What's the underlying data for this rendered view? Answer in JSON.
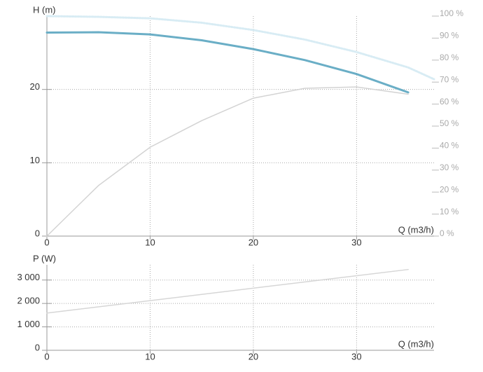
{
  "chart_data": [
    {
      "type": "line",
      "y_label": "H (m)",
      "x_label": "Q (m3/h)",
      "x": [
        0,
        5,
        10,
        15,
        20,
        25,
        30,
        35,
        37.5
      ],
      "xlim": [
        0,
        37.5
      ],
      "xticks": [
        0,
        10,
        20,
        30
      ],
      "ylim": [
        0,
        30
      ],
      "yticks": [
        0,
        10,
        20
      ],
      "y2lim": [
        0,
        100
      ],
      "y2ticks": [
        {
          "value": 0,
          "label": "0 %"
        },
        {
          "value": 10,
          "label": "10 %"
        },
        {
          "value": 20,
          "label": "20 %"
        },
        {
          "value": 30,
          "label": "30 %"
        },
        {
          "value": 40,
          "label": "40 %"
        },
        {
          "value": 50,
          "label": "50 %"
        },
        {
          "value": 60,
          "label": "60 %"
        },
        {
          "value": 70,
          "label": "70 %"
        },
        {
          "value": 80,
          "label": "80 %"
        },
        {
          "value": 90,
          "label": "90 %"
        },
        {
          "value": 100,
          "label": "100 %"
        }
      ],
      "grid": true,
      "series": [
        {
          "color": "#d8ecf4",
          "line_width": 3,
          "style": "dotted",
          "values": [
            30,
            29.9,
            29.7,
            29.1,
            28.1,
            26.8,
            25.1,
            23,
            21.4
          ]
        },
        {
          "color": "#d3d3d3",
          "line_width": 1.5,
          "style": "solid",
          "axis": "y2",
          "values": [
            0,
            23,
            40.4,
            52.5,
            62.7,
            67.2,
            67.8,
            64.5,
            null
          ]
        },
        {
          "color": "#6aaec6",
          "line_width": 3,
          "style": "solid",
          "values": [
            27.75,
            27.8,
            27.5,
            26.7,
            25.5,
            24.0,
            22.1,
            19.6,
            null
          ]
        }
      ]
    },
    {
      "type": "line",
      "y_label": "P (W)",
      "x_label": "Q (m3/h)",
      "x": [
        0,
        35
      ],
      "xlim": [
        0,
        37.5
      ],
      "xticks": [
        0,
        10,
        20,
        30
      ],
      "ylim": [
        0,
        3650
      ],
      "yticks": [
        0,
        {
          "value": 1000,
          "label": "1 000"
        },
        {
          "value": 2000,
          "label": "2 000"
        },
        {
          "value": 3000,
          "label": "3 000"
        }
      ],
      "grid": true,
      "series": [
        {
          "color": "#d6d6d6",
          "line_width": 1.5,
          "style": "solid",
          "values": [
            1590,
            3450
          ]
        }
      ]
    }
  ]
}
